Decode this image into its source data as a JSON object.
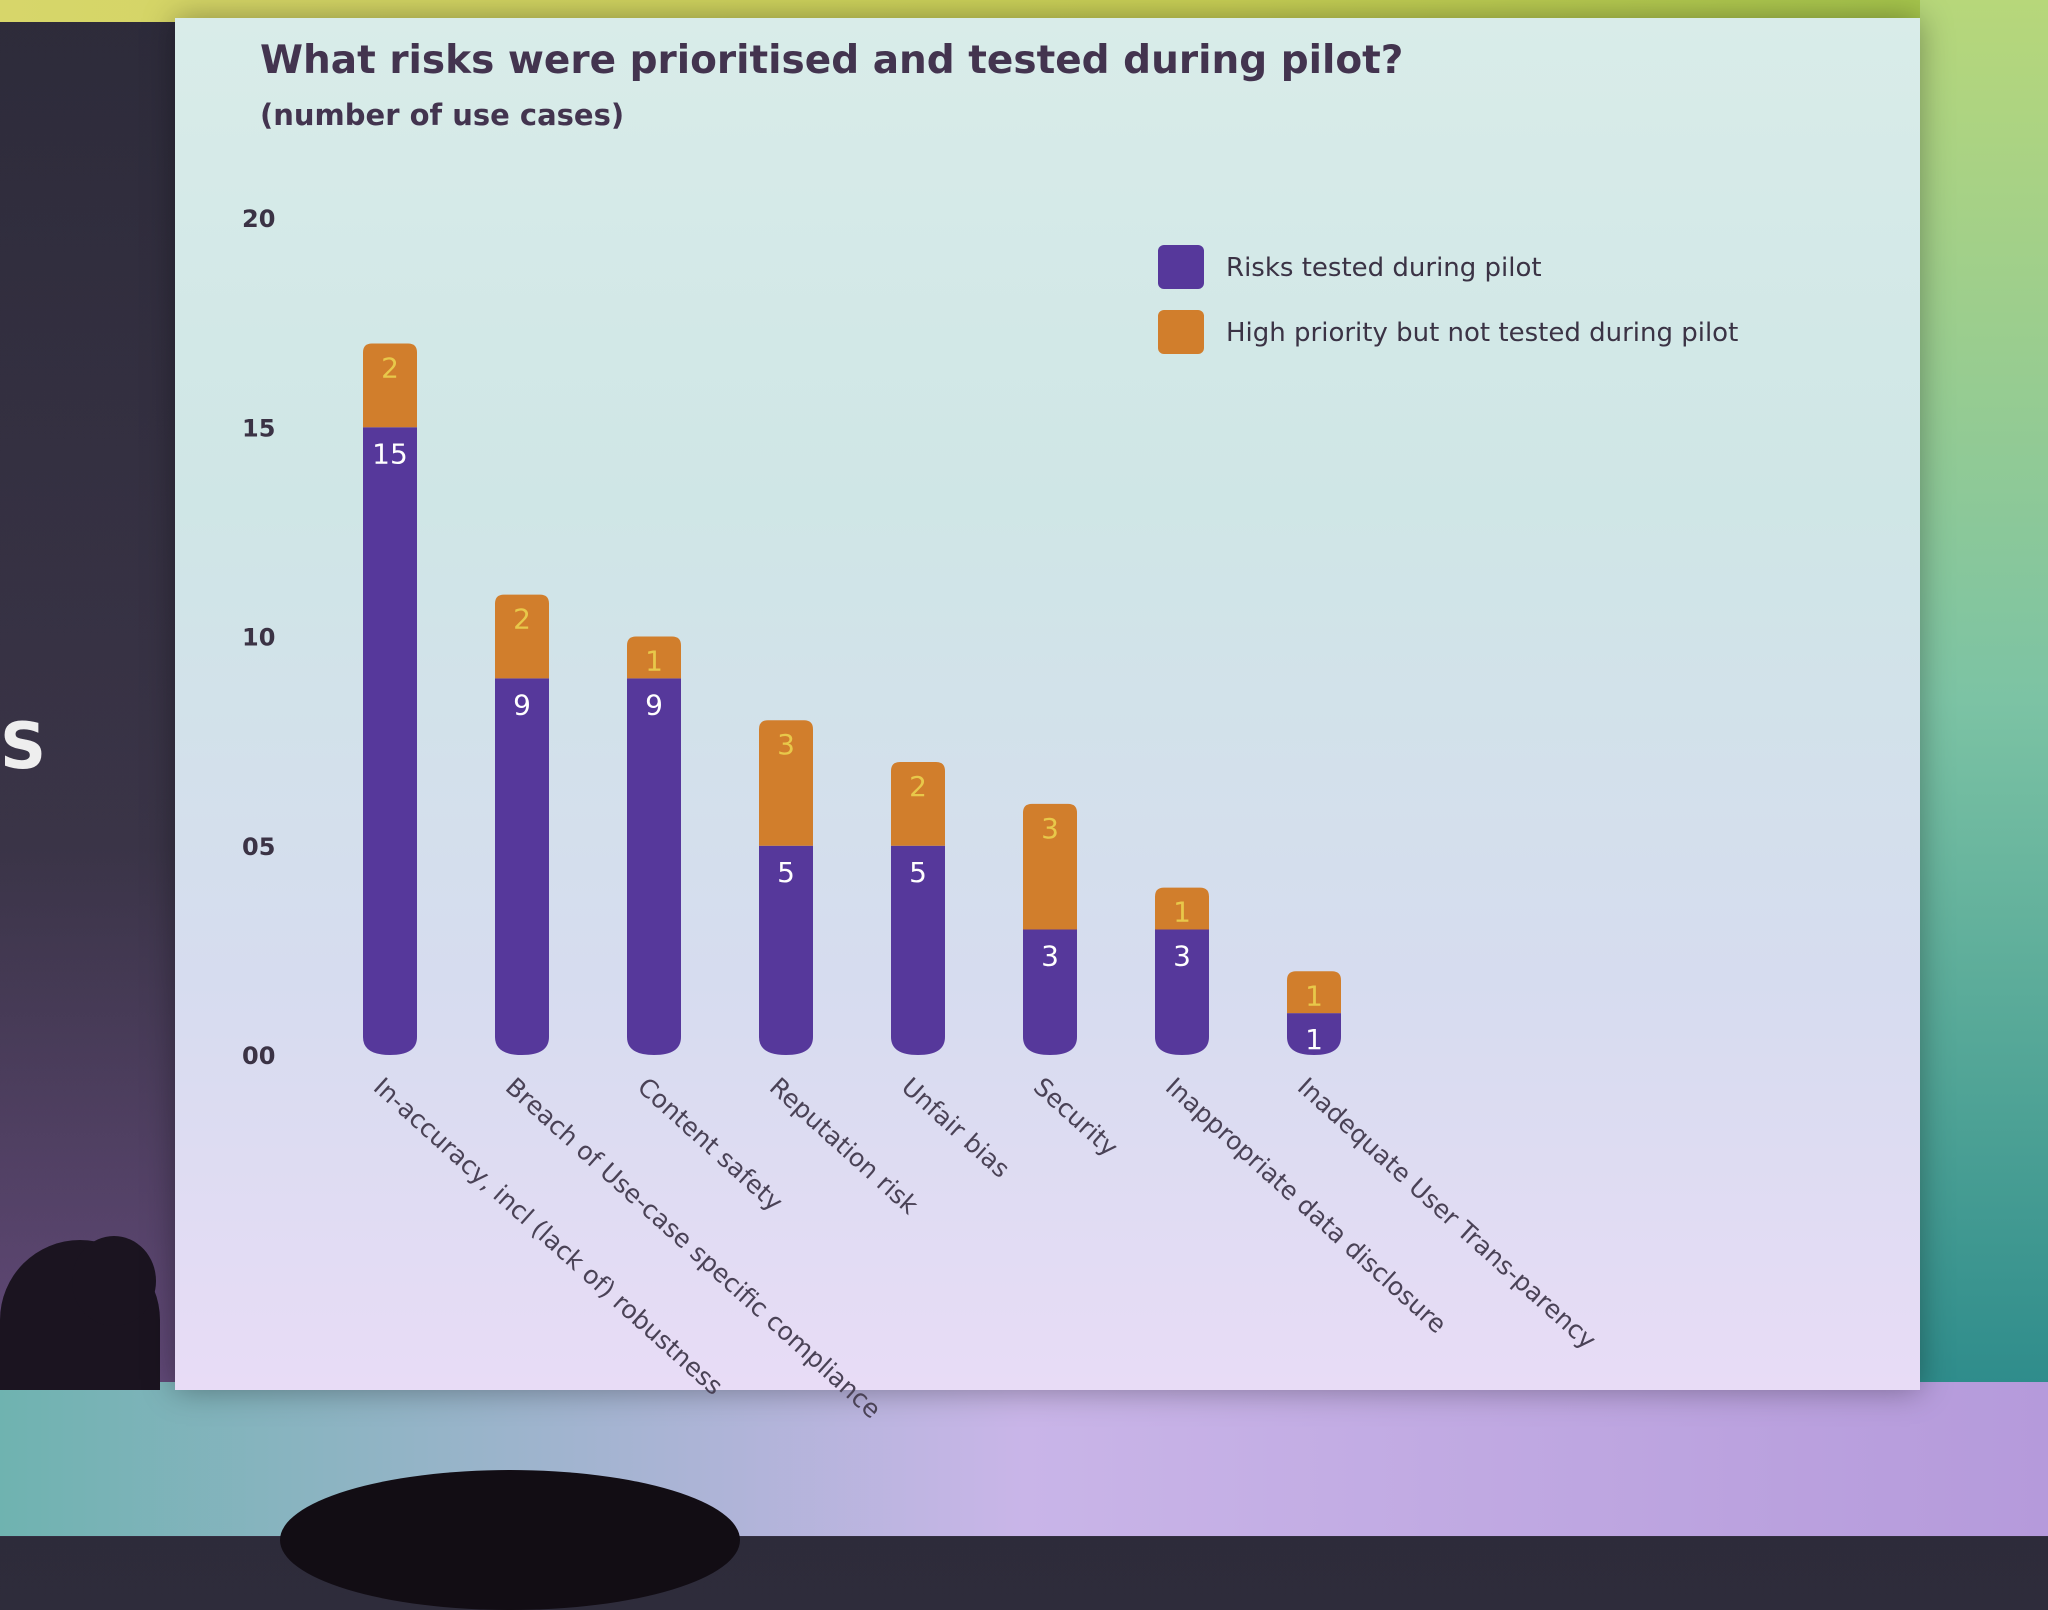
{
  "slide": {
    "side_letter": "S"
  },
  "colors": {
    "tested": "#56389b",
    "not_tested": "#d17e2c",
    "tested_label": "#ffffff",
    "not_tested_label": "#e8c84a",
    "text": "#3b3345"
  },
  "chart_data": {
    "type": "bar",
    "stacked": true,
    "title": "What risks were prioritised and tested during pilot?",
    "subtitle": "(number of use cases)",
    "categories": [
      "In-accuracy, incl (lack of) robustness",
      "Breach of Use-case specific compliance",
      "Content safety",
      "Reputation risk",
      "Unfair bias",
      "Security",
      "Inappropriate data disclosure",
      "Inadequate User Trans-parency"
    ],
    "series": [
      {
        "name": "Risks tested during pilot",
        "values": [
          15,
          9,
          9,
          5,
          5,
          3,
          3,
          1
        ]
      },
      {
        "name": "High priority but not tested during pilot",
        "values": [
          2,
          2,
          1,
          3,
          2,
          3,
          1,
          1
        ]
      }
    ],
    "ylim": [
      0,
      20
    ],
    "yticks": [
      "00",
      "05",
      "10",
      "15",
      "20"
    ],
    "grid": false,
    "legend_position": "top-right"
  }
}
